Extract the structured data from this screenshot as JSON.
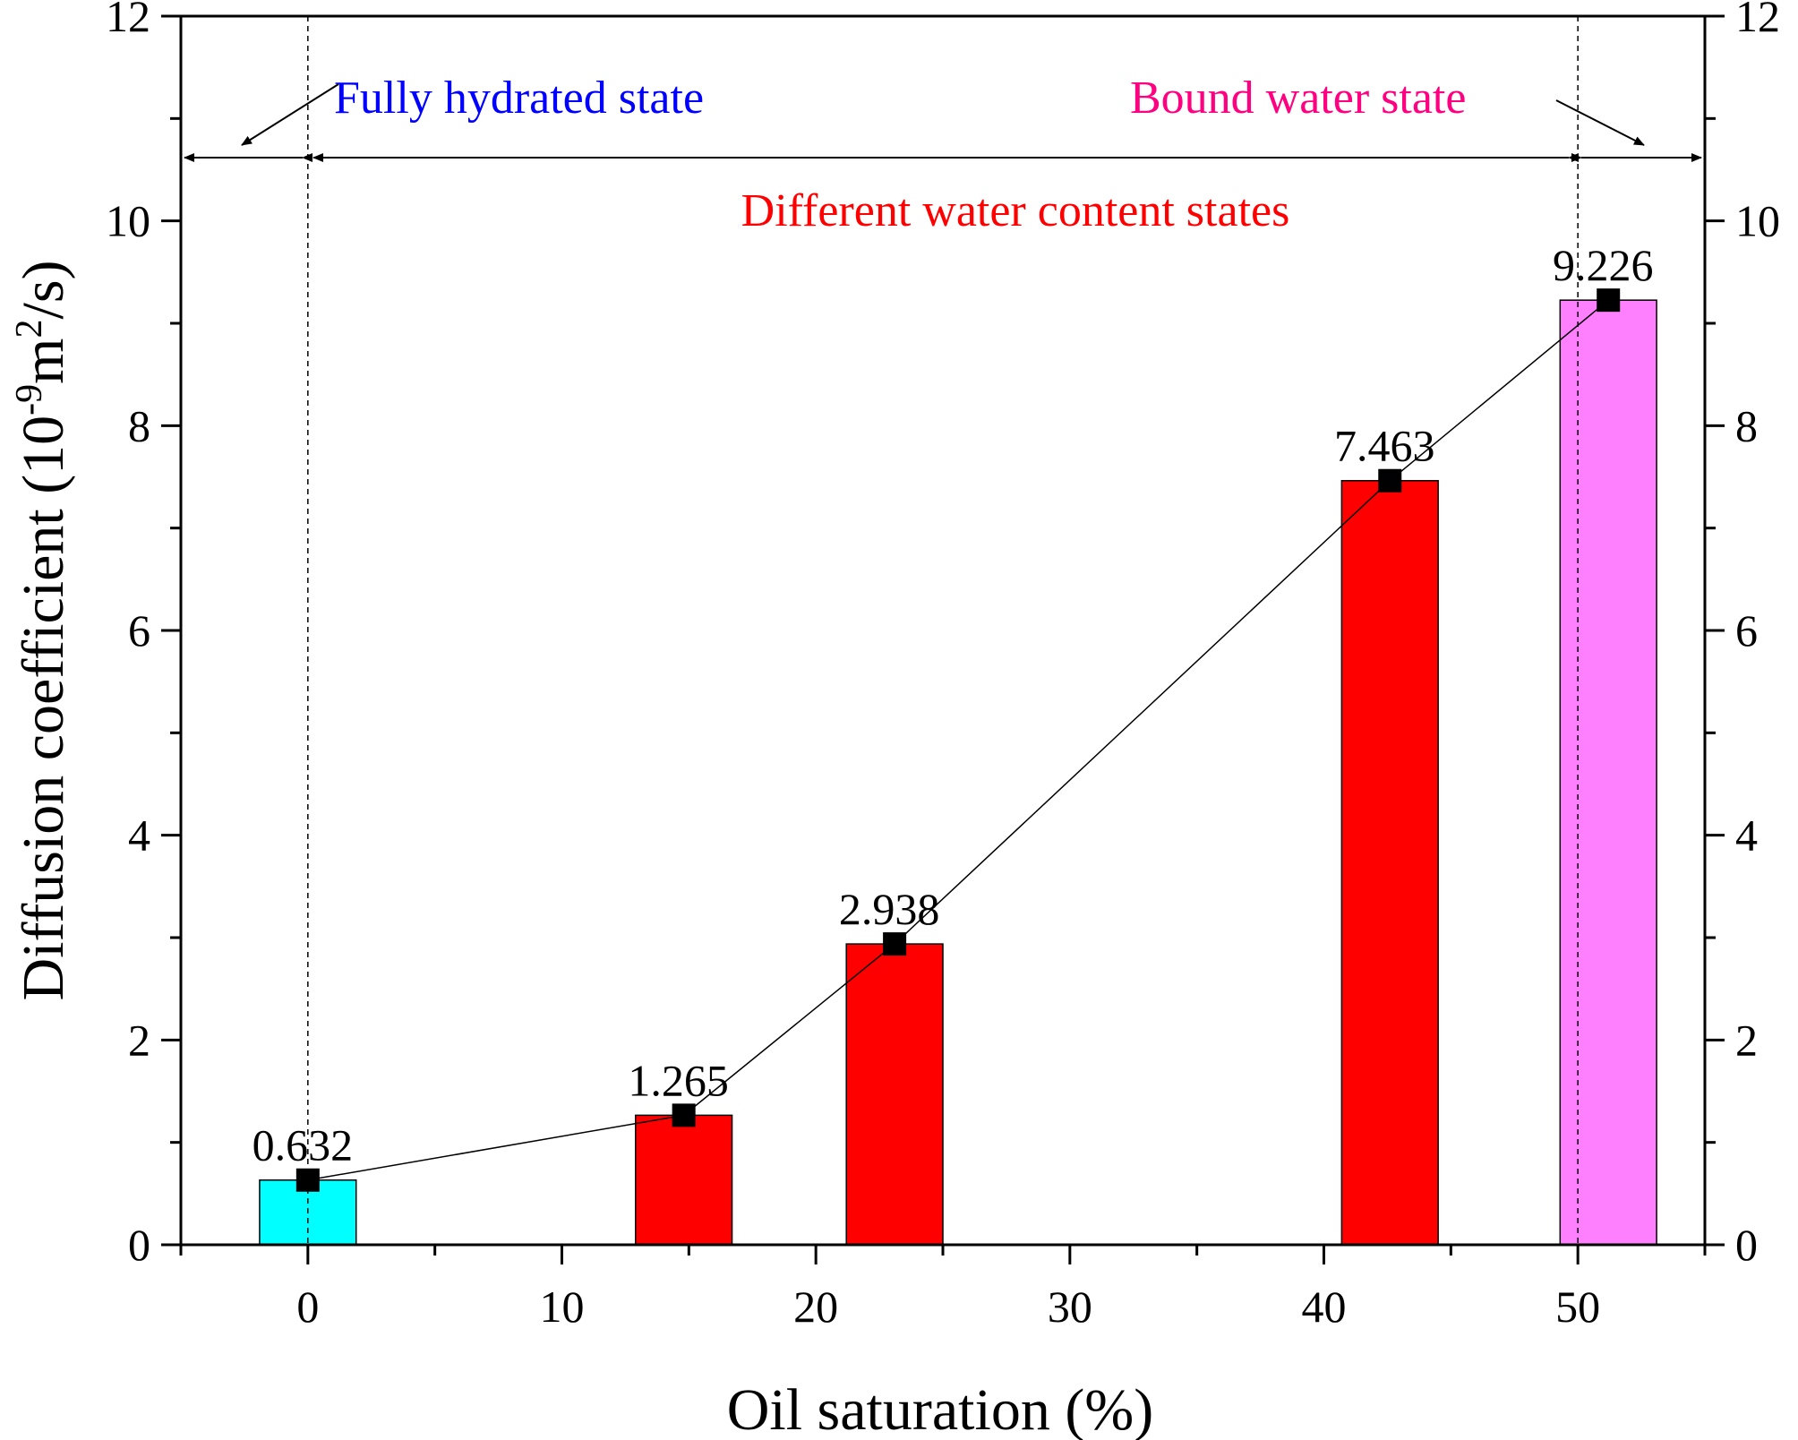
{
  "chart_data": {
    "type": "bar",
    "xlabel": "Oil saturation (%)",
    "ylabel_main": "Diffusion coefficient (10",
    "ylabel_exp1": "-9",
    "ylabel_mid": "m",
    "ylabel_exp2": "2",
    "ylabel_tail": "/s)",
    "xlim": [
      -5,
      55
    ],
    "ylim": [
      0,
      12
    ],
    "x_ticks": [
      "0",
      "10",
      "20",
      "30",
      "40",
      "50"
    ],
    "y_ticks": [
      "0",
      "2",
      "4",
      "6",
      "8",
      "10",
      "12"
    ],
    "x": [
      0,
      14.8,
      23.1,
      42.6,
      51.2
    ],
    "values": [
      0.632,
      1.265,
      2.938,
      7.463,
      9.226
    ],
    "value_labels": [
      "0.632",
      "1.265",
      "2.938",
      "7.463",
      "9.226"
    ],
    "bar_colors": [
      "#00ffff",
      "#ff0000",
      "#ff0000",
      "#ff0000",
      "#ff80ff"
    ],
    "bar_width_units": 3.8,
    "line_series": {
      "marker": "square",
      "color": "#000000"
    },
    "boundaries_x": [
      0,
      50
    ],
    "annotations": {
      "fully_hydrated": {
        "text": "Fully hydrated state",
        "color": "#0000ff"
      },
      "bound_water": {
        "text": "Bound water state",
        "color": "#ff0080"
      },
      "different_states": {
        "text": "Different water content states",
        "color": "#ff0000"
      }
    }
  }
}
